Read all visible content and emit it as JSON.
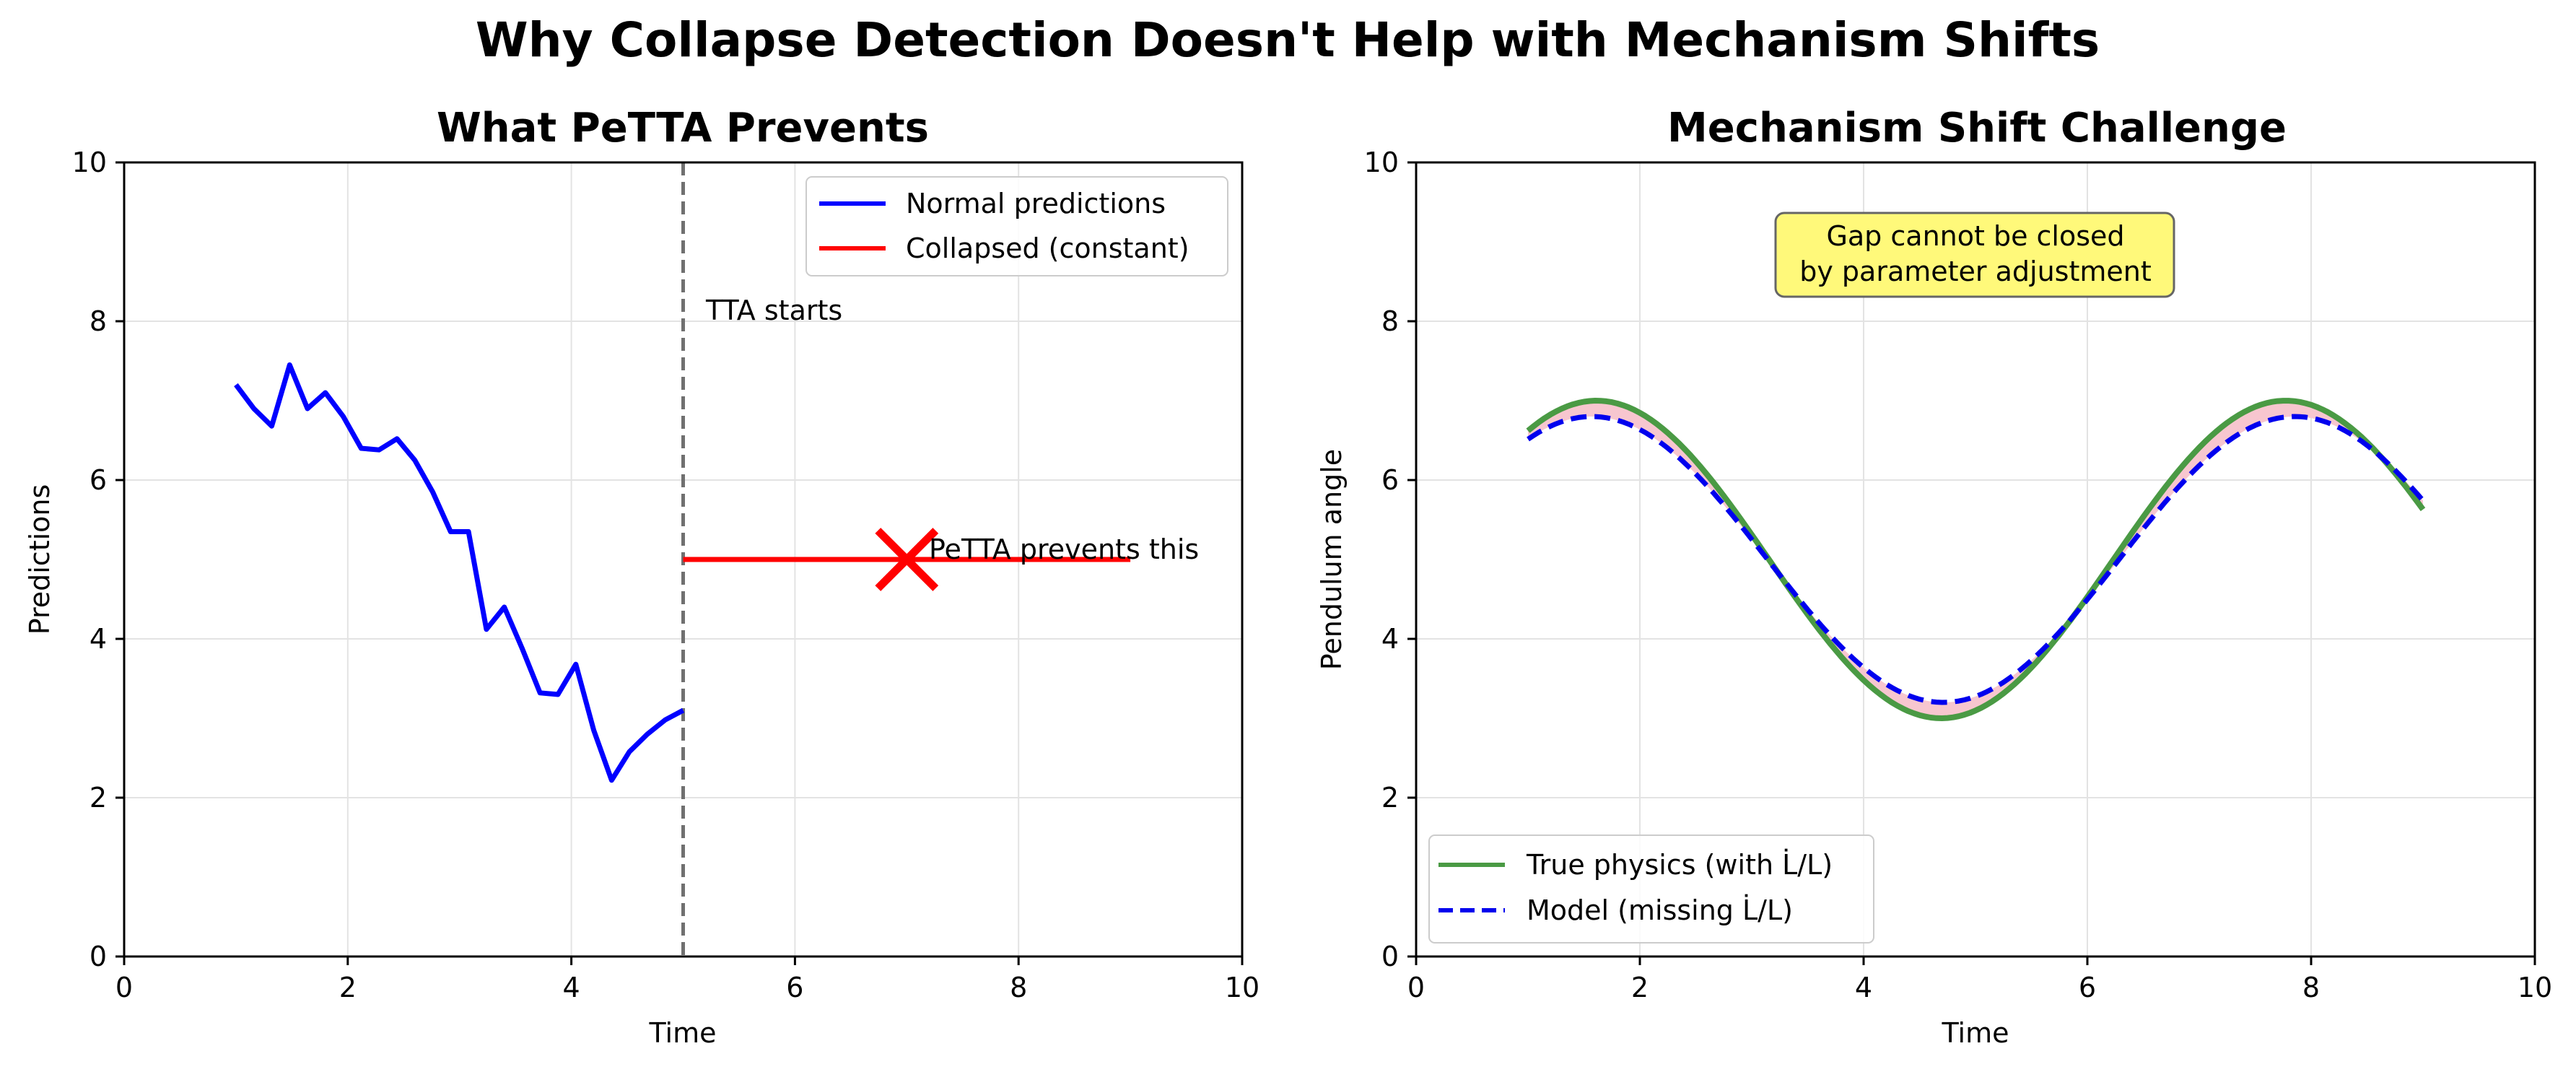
{
  "figure": {
    "suptitle": "Why Collapse Detection Doesn't Help with Mechanism Shifts"
  },
  "chart_data": [
    {
      "type": "line",
      "title": "What PeTTA Prevents",
      "xlabel": "Time",
      "ylabel": "Predictions",
      "xlim": [
        0,
        10
      ],
      "ylim": [
        0,
        10
      ],
      "xticks": [
        "0",
        "2",
        "4",
        "6",
        "8",
        "10"
      ],
      "yticks": [
        "0",
        "2",
        "4",
        "6",
        "8",
        "10"
      ],
      "grid": true,
      "legend_position": "upper right",
      "series": [
        {
          "name": "Normal predictions",
          "color": "#0000ff",
          "style": "solid",
          "x": [
            1.0,
            1.16,
            1.32,
            1.48,
            1.64,
            1.8,
            1.96,
            2.12,
            2.28,
            2.44,
            2.6,
            2.76,
            2.92,
            3.08,
            3.24,
            3.4,
            3.56,
            3.72,
            3.88,
            4.04,
            4.2,
            4.36,
            4.52,
            4.68,
            4.84,
            5.0
          ],
          "y": [
            7.2,
            6.9,
            6.68,
            7.45,
            6.9,
            7.1,
            6.8,
            6.4,
            6.38,
            6.52,
            6.25,
            5.85,
            5.35,
            5.35,
            4.12,
            4.4,
            3.88,
            3.32,
            3.3,
            3.68,
            2.85,
            2.22,
            2.58,
            2.8,
            2.98,
            3.1
          ]
        },
        {
          "name": "Collapsed (constant)",
          "color": "#ff0000",
          "style": "solid",
          "x": [
            5.0,
            9.0
          ],
          "y": [
            5.0,
            5.0
          ]
        }
      ],
      "vline": {
        "x": 5.0,
        "color": "#707070",
        "style": "dashed"
      },
      "marker": {
        "x": 7.0,
        "y": 5.0,
        "symbol": "x",
        "color": "#ff0000"
      },
      "annotations": [
        {
          "text": "TTA starts",
          "x": 5.2,
          "y": 8.0
        },
        {
          "text": "PeTTA prevents this",
          "x": 7.2,
          "y": 5.0
        }
      ]
    },
    {
      "type": "line",
      "title": "Mechanism Shift Challenge",
      "xlabel": "Time",
      "ylabel": "Pendulum angle",
      "xlim": [
        0,
        10
      ],
      "ylim": [
        0,
        10
      ],
      "xticks": [
        "0",
        "2",
        "4",
        "6",
        "8",
        "10"
      ],
      "yticks": [
        "0",
        "2",
        "4",
        "6",
        "8",
        "10"
      ],
      "grid": true,
      "legend_position": "lower left",
      "series": [
        {
          "name": "True physics (with L̇/L)",
          "color": "#4a9a44",
          "style": "solid",
          "function": {
            "offset": 5.0,
            "amplitude": 2.0,
            "omega": 1.02,
            "phase_start": 1.0,
            "phase_offset": -0.055
          },
          "x_range": [
            1.0,
            9.0
          ]
        },
        {
          "name": "Model (missing L̇/L)",
          "color": "#0000ee",
          "style": "dashed",
          "function": {
            "offset": 5.0,
            "amplitude": 1.8,
            "omega": 1.0,
            "phase_start": 1.0,
            "phase_offset": 0.0
          },
          "x_range": [
            1.0,
            9.0
          ]
        }
      ],
      "fill_between": {
        "color": "#f7c6cf"
      },
      "annotation_box": {
        "line1": "Gap cannot be closed",
        "line2": "by parameter adjustment",
        "background": "#fff97a",
        "border": "#666666",
        "x": 5.0,
        "y": 9.0
      }
    }
  ]
}
